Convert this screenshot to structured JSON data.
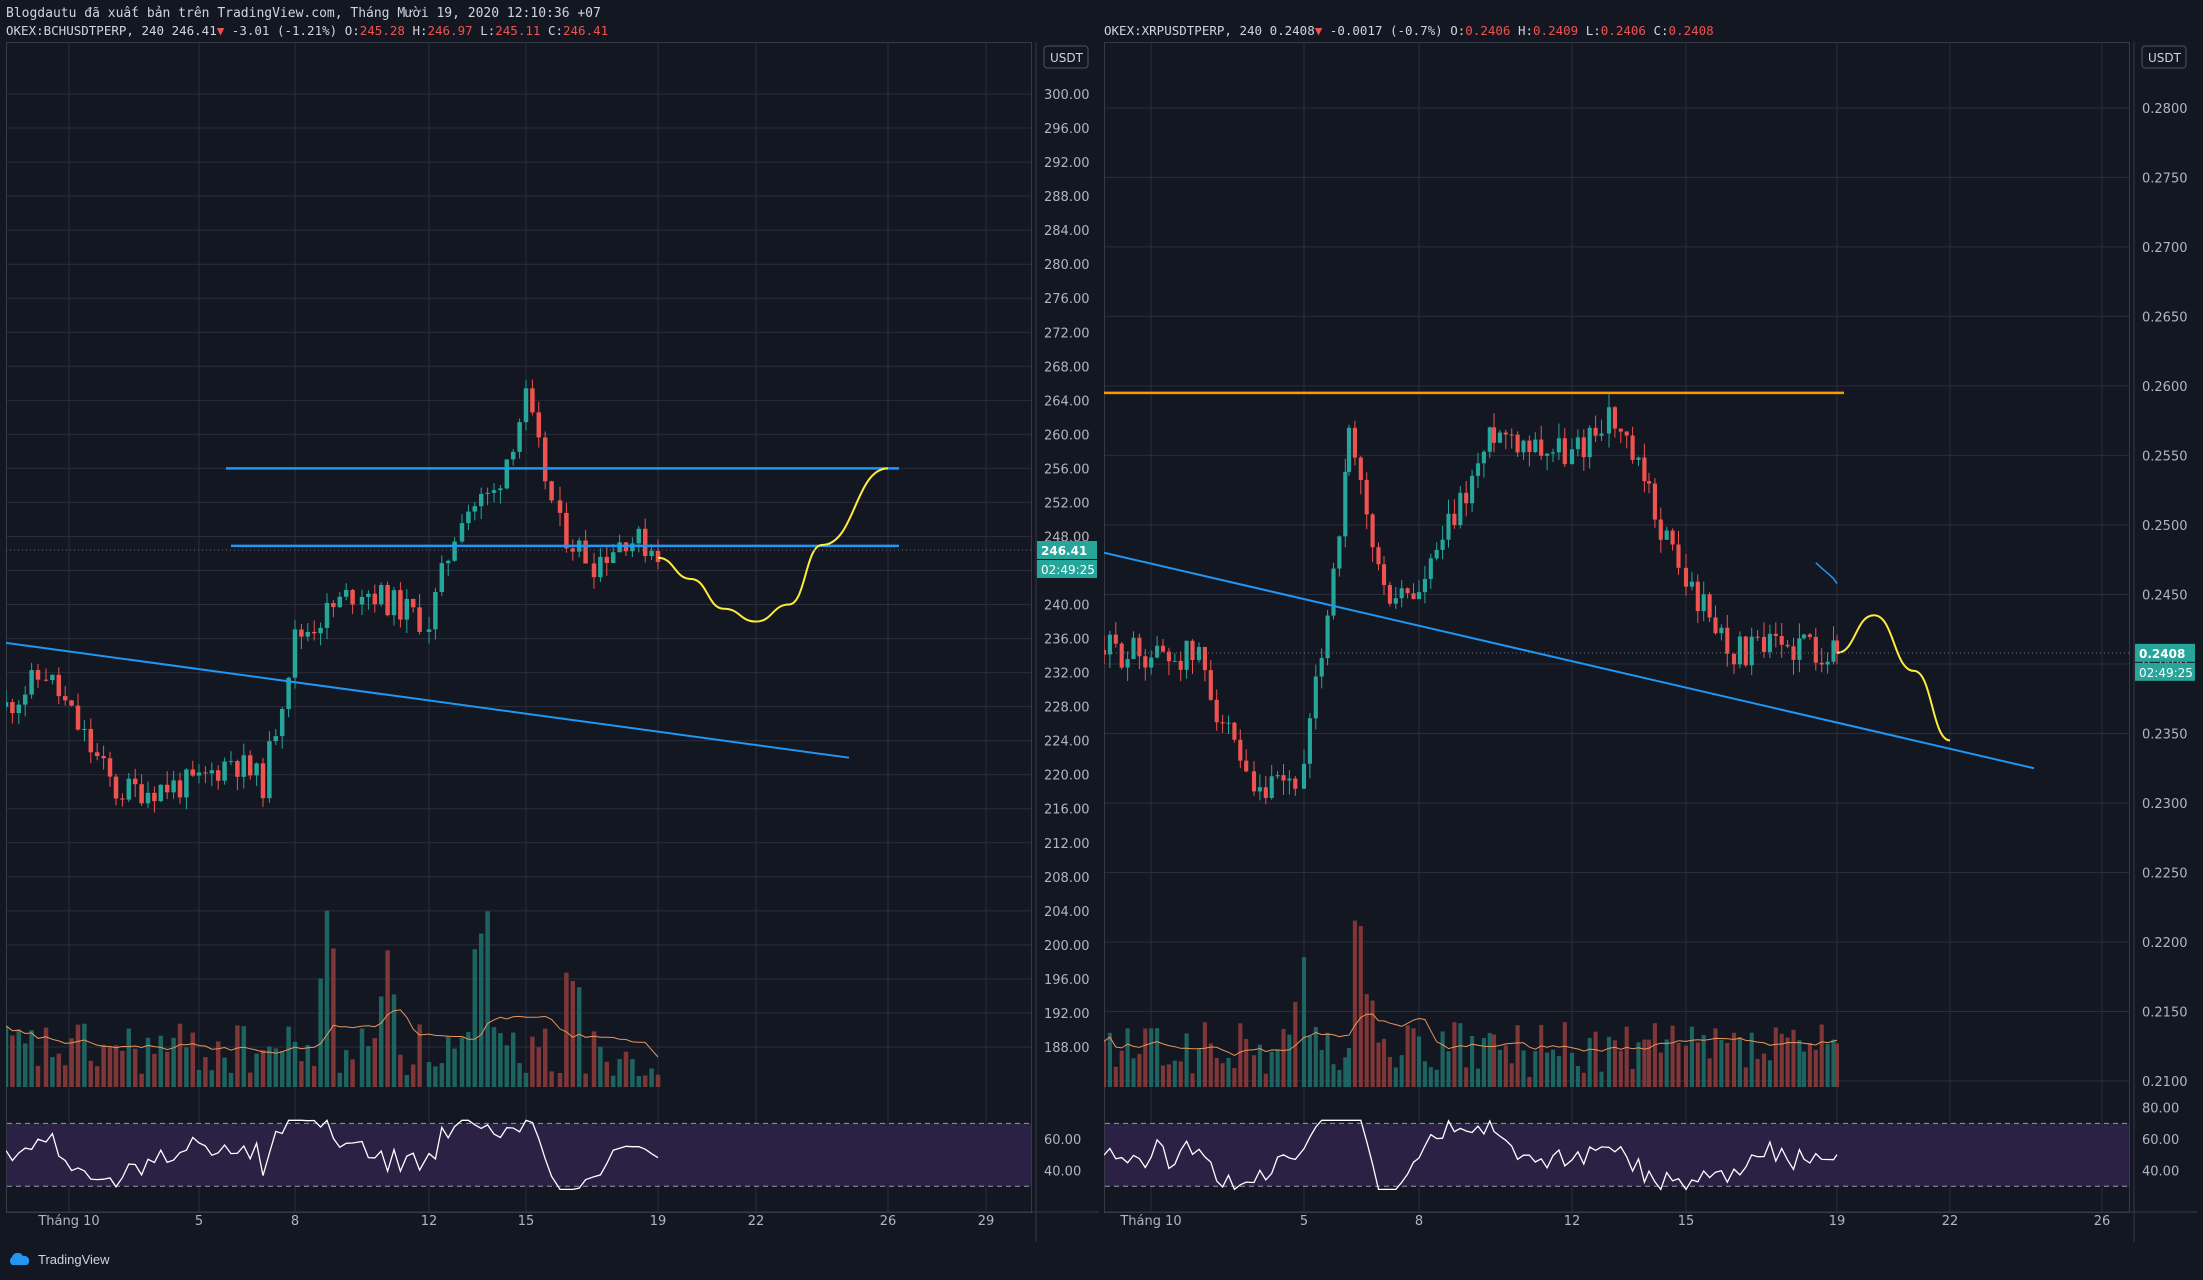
{
  "header": "Blogdautu đã xuất bản trên TradingView.com, Tháng Mười 19, 2020 12:10:36 +07",
  "footer": {
    "brand": "TradingView"
  },
  "colors": {
    "background": "#131722",
    "grid": "#2a2e39",
    "up": "#26a69a",
    "down": "#ef5350",
    "trendline": "#2196f3",
    "ma": "#2196f3",
    "forecast": "#ffeb3b",
    "resistance_orange": "#ff9800",
    "rsi_band": "#2a2145",
    "rsi_line": "#ffffff",
    "volume_ma": "#e8955c",
    "price_tag": "#26a69a"
  },
  "charts": [
    {
      "id": "bch",
      "symbol_line": {
        "prefix": "OKEX:BCHUSDTPERP, 240",
        "last": "246.41",
        "change": "-3.01 (-1.21%)",
        "o_label": "O:",
        "o": "245.28",
        "h_label": "H:",
        "h": "246.97",
        "l_label": "L:",
        "l": "245.11",
        "c_label": "C:",
        "c": "246.41"
      },
      "currency": "USDT",
      "price_tag": "246.41",
      "countdown": "02:49:25",
      "x_labels": [
        "Tháng 10",
        "5",
        "8",
        "12",
        "15",
        "19",
        "22",
        "26",
        "29"
      ]
    },
    {
      "id": "xrp",
      "symbol_line": {
        "prefix": "OKEX:XRPUSDTPERP, 240",
        "last": "0.2408",
        "change": "-0.0017 (-0.7%)",
        "o_label": "O:",
        "o": "0.2406",
        "h_label": "H:",
        "h": "0.2409",
        "l_label": "L:",
        "l": "0.2406",
        "c_label": "C:",
        "c": "0.2408"
      },
      "currency": "USDT",
      "price_tag": "0.2408",
      "countdown": "02:49:25",
      "x_labels": [
        "Tháng 10",
        "5",
        "8",
        "12",
        "15",
        "19",
        "22",
        "26"
      ]
    }
  ],
  "chart_data": [
    {
      "type": "candlestick",
      "symbol": "OKEX:BCHUSDTPERP",
      "interval": "240",
      "y_axis_ticks": [
        "300.00",
        "296.00",
        "292.00",
        "288.00",
        "284.00",
        "280.00",
        "276.00",
        "272.00",
        "268.00",
        "264.00",
        "260.00",
        "256.00",
        "252.00",
        "248.00",
        "244.00",
        "240.00",
        "236.00",
        "232.00",
        "228.00",
        "224.00",
        "220.00",
        "216.00",
        "212.00",
        "208.00",
        "204.00",
        "200.00",
        "196.00",
        "192.00",
        "188.00"
      ],
      "ylim": [
        186,
        302
      ],
      "rsi_ticks": [
        "60.00",
        "40.00"
      ],
      "close_path": [
        {
          "x": "Tháng 10",
          "y": 228
        },
        {
          "x": "2",
          "y": 232
        },
        {
          "x": "3",
          "y": 218
        },
        {
          "x": "5",
          "y": 219
        },
        {
          "x": "6",
          "y": 222
        },
        {
          "x": "7",
          "y": 219
        },
        {
          "x": "8",
          "y": 236
        },
        {
          "x": "10",
          "y": 242
        },
        {
          "x": "12",
          "y": 238
        },
        {
          "x": "13",
          "y": 251
        },
        {
          "x": "14",
          "y": 253
        },
        {
          "x": "15",
          "y": 264
        },
        {
          "x": "16",
          "y": 249
        },
        {
          "x": "17",
          "y": 245
        },
        {
          "x": "18",
          "y": 248
        },
        {
          "x": "19",
          "y": 246.41
        }
      ],
      "horizontal_levels": [
        256.0,
        246.9
      ],
      "forecast_path": [
        {
          "x": "19",
          "y": 245.5
        },
        {
          "x": "20",
          "y": 243.0
        },
        {
          "x": "21",
          "y": 239.5
        },
        {
          "x": "22",
          "y": 238.0
        },
        {
          "x": "23",
          "y": 240.0
        },
        {
          "x": "24",
          "y": 247.0
        },
        {
          "x": "26",
          "y": 256.0
        }
      ]
    },
    {
      "type": "candlestick",
      "symbol": "OKEX:XRPUSDTPERP",
      "interval": "240",
      "y_axis_ticks": [
        "0.2800",
        "0.2750",
        "0.2700",
        "0.2650",
        "0.2600",
        "0.2550",
        "0.2500",
        "0.2450",
        "0.2400",
        "0.2350",
        "0.2300",
        "0.2250",
        "0.2200",
        "0.2150",
        "0.2100"
      ],
      "ylim": [
        0.2095,
        0.2815
      ],
      "rsi_ticks": [
        "80.00",
        "60.00",
        "40.00"
      ],
      "close_path": [
        {
          "x": "Tháng 10",
          "y": 0.241
        },
        {
          "x": "3",
          "y": 0.2405
        },
        {
          "x": "4",
          "y": 0.23
        },
        {
          "x": "5",
          "y": 0.232
        },
        {
          "x": "6",
          "y": 0.256
        },
        {
          "x": "7",
          "y": 0.245
        },
        {
          "x": "8",
          "y": 0.245
        },
        {
          "x": "10",
          "y": 0.257
        },
        {
          "x": "12",
          "y": 0.255
        },
        {
          "x": "13",
          "y": 0.258
        },
        {
          "x": "14",
          "y": 0.252
        },
        {
          "x": "15",
          "y": 0.246
        },
        {
          "x": "16",
          "y": 0.241
        },
        {
          "x": "17",
          "y": 0.241
        },
        {
          "x": "18",
          "y": 0.2415
        },
        {
          "x": "19",
          "y": 0.2408
        }
      ],
      "horizontal_levels": [
        0.2595
      ],
      "forecast_path": [
        {
          "x": "19",
          "y": 0.2408
        },
        {
          "x": "20",
          "y": 0.2435
        },
        {
          "x": "21",
          "y": 0.2395
        },
        {
          "x": "22",
          "y": 0.2345
        }
      ]
    }
  ]
}
